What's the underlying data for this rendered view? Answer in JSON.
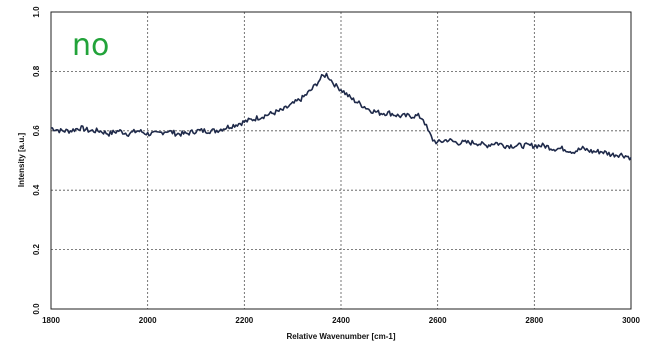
{
  "annotation": {
    "text": "no",
    "color": "#22a33a"
  },
  "chart_data": {
    "type": "line",
    "title": "",
    "xlabel": "Relative Wavenumber [cm-1]",
    "ylabel": "Intensity [a.u.]",
    "xlim": [
      1800,
      3000
    ],
    "ylim": [
      0.0,
      1.0
    ],
    "xticks": [
      "1800",
      "2000",
      "2200",
      "2400",
      "2600",
      "2800",
      "3000"
    ],
    "yticks": [
      "0.0",
      "0.2",
      "0.4",
      "0.6",
      "0.8",
      "1.0"
    ],
    "grid": "dotted",
    "line_color": "#1f2a4a",
    "series": [
      {
        "x": [
          1800,
          1820,
          1840,
          1860,
          1880,
          1900,
          1920,
          1940,
          1960,
          1980,
          2000,
          2020,
          2040,
          2060,
          2080,
          2100,
          2120,
          2140,
          2160,
          2180,
          2200,
          2220,
          2240,
          2260,
          2280,
          2300,
          2320,
          2340,
          2350,
          2360,
          2370,
          2380,
          2390,
          2400,
          2420,
          2440,
          2460,
          2480,
          2500,
          2520,
          2540,
          2560,
          2570,
          2580,
          2590,
          2600,
          2620,
          2640,
          2660,
          2680,
          2700,
          2720,
          2740,
          2760,
          2780,
          2800,
          2820,
          2840,
          2860,
          2880,
          2900,
          2920,
          2940,
          2960,
          2980,
          3000
        ],
        "values": [
          0.61,
          0.6,
          0.6,
          0.61,
          0.6,
          0.6,
          0.59,
          0.6,
          0.59,
          0.6,
          0.59,
          0.59,
          0.6,
          0.59,
          0.59,
          0.6,
          0.6,
          0.6,
          0.61,
          0.62,
          0.63,
          0.64,
          0.65,
          0.66,
          0.67,
          0.69,
          0.71,
          0.74,
          0.76,
          0.78,
          0.79,
          0.77,
          0.75,
          0.74,
          0.71,
          0.69,
          0.67,
          0.66,
          0.66,
          0.65,
          0.65,
          0.65,
          0.64,
          0.6,
          0.57,
          0.56,
          0.57,
          0.56,
          0.56,
          0.56,
          0.55,
          0.56,
          0.55,
          0.55,
          0.55,
          0.55,
          0.55,
          0.54,
          0.54,
          0.53,
          0.54,
          0.53,
          0.53,
          0.52,
          0.52,
          0.51
        ]
      }
    ]
  }
}
